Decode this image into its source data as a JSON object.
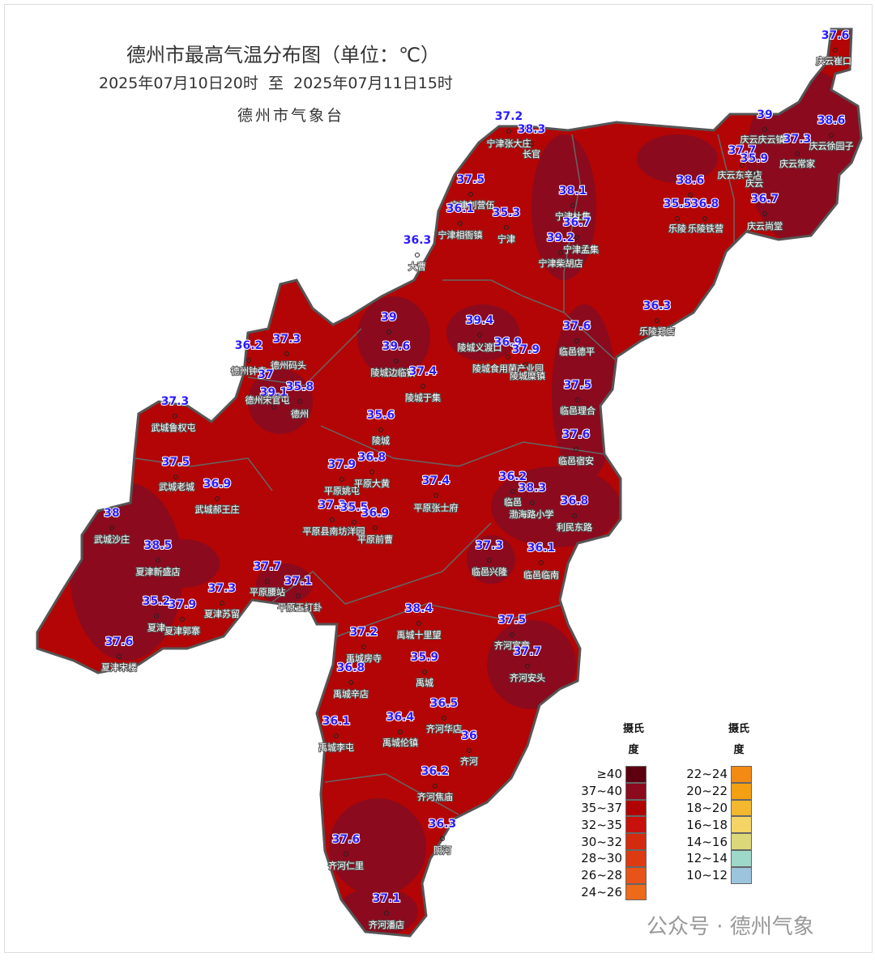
{
  "header": {
    "title": "德州市最高气温分布图（单位：℃）",
    "period": "2025年07月10日20时  至  2025年07月11日15时",
    "issuer": "德州市气象台"
  },
  "stations": [
    {
      "value": 37.6,
      "name": "庆云崔口"
    },
    {
      "value": 37.2,
      "name": "宁津张大庄"
    },
    {
      "value": 38.3,
      "name": "长官"
    },
    {
      "value": 39,
      "name": "庆云庆云镇"
    },
    {
      "value": 38.6,
      "name": "庆云徐园子"
    },
    {
      "value": 37.3,
      "name": "庆云常家"
    },
    {
      "value": 37.7,
      "name": "庆云东辛店"
    },
    {
      "value": 35.9,
      "name": "庆云"
    },
    {
      "value": 37.5,
      "name": "宁津刘营伍"
    },
    {
      "value": 36.1,
      "name": "宁津相衙镇"
    },
    {
      "value": 35.3,
      "name": "宁津"
    },
    {
      "value": 38.1,
      "name": "宁津杜集"
    },
    {
      "value": 36.7,
      "name": "宁津孟集"
    },
    {
      "value": 39.2,
      "name": "宁津柴胡店"
    },
    {
      "value": 38.6
    },
    {
      "value": 35.5,
      "name": "乐陵"
    },
    {
      "value": 36.8,
      "name": "乐陵铁营"
    },
    {
      "value": 36.7,
      "name": "庆云尚堂"
    },
    {
      "value": 36.3,
      "name": "大曹"
    },
    {
      "value": 36.3,
      "name": "乐陵郑店"
    },
    {
      "value": 39
    },
    {
      "value": 39.4,
      "name": "陵城义渡口"
    },
    {
      "value": 39.6,
      "name": "陵城边临镇"
    },
    {
      "value": 36.9,
      "name": "陵城食用菌产业园"
    },
    {
      "value": 37.9,
      "name": "陵城糜镇"
    },
    {
      "value": 37.6,
      "name": "临邑德平"
    },
    {
      "value": 37.4,
      "name": "陵城于集"
    },
    {
      "value": 36.2,
      "name": "德州钟寺"
    },
    {
      "value": 37.3,
      "name": "德州码头"
    },
    {
      "value": 37
    },
    {
      "value": 39.1,
      "name": "德州宋官屯"
    },
    {
      "value": 35.8,
      "name": "德州"
    },
    {
      "value": 37.3,
      "name": "武城鲁权屯"
    },
    {
      "value": 37.5,
      "name": "临邑理合"
    },
    {
      "value": 35.6,
      "name": "陵城"
    },
    {
      "value": 37.6,
      "name": "临邑宿安"
    },
    {
      "value": 37.9,
      "name": "平原姚屯"
    },
    {
      "value": 36.8,
      "name": "平原大黄"
    },
    {
      "value": 37.5,
      "name": "武城老城"
    },
    {
      "value": 36.9,
      "name": "武城郝王庄"
    },
    {
      "value": 37.4,
      "name": "平原张士府"
    },
    {
      "value": 36.2,
      "name": "临邑"
    },
    {
      "value": 38.3,
      "name": "渤海路小学"
    },
    {
      "value": 36.8,
      "name": "利民东路"
    },
    {
      "value": 38,
      "name": "武城沙庄"
    },
    {
      "value": 37.3,
      "name": "平原县南坊洋园"
    },
    {
      "value": 35.5
    },
    {
      "value": 36.9,
      "name": "平原前曹"
    },
    {
      "value": 38.5,
      "name": "夏津新盛店"
    },
    {
      "value": 37.3,
      "name": "临邑兴隆"
    },
    {
      "value": 36.1,
      "name": "临邑临南"
    },
    {
      "value": 37.7,
      "name": "平原腰站"
    },
    {
      "value": 37.1,
      "name": "平原王打卦"
    },
    {
      "value": 37.3,
      "name": "夏津苏留"
    },
    {
      "value": 35.2,
      "name": "夏津"
    },
    {
      "value": 37.9,
      "name": "夏津郭寨"
    },
    {
      "value": 38.4,
      "name": "禹城十里望"
    },
    {
      "value": 37.2,
      "name": "禹城房寺"
    },
    {
      "value": 37.5,
      "name": "齐河宣章"
    },
    {
      "value": 37.7,
      "name": "齐河安头"
    },
    {
      "value": 35.9,
      "name": "禹城"
    },
    {
      "value": 36.8,
      "name": "禹城辛店"
    },
    {
      "value": 37.6,
      "name": "夏津宋楼"
    },
    {
      "value": 36.5,
      "name": "齐河华店"
    },
    {
      "value": 36.1,
      "name": "禹城李屯"
    },
    {
      "value": 36.4,
      "name": "禹城伦镇"
    },
    {
      "value": 36,
      "name": "齐河"
    },
    {
      "value": 36.2,
      "name": "齐河焦庙"
    },
    {
      "value": 36.3,
      "name": "阴河"
    },
    {
      "value": 37.6,
      "name": "齐河仁里"
    },
    {
      "value": 37.1,
      "name": "齐河潘店"
    }
  ],
  "legend": [
    {
      "title": "摄氏度",
      "items": [
        {
          "label": "≥40",
          "color": "#5c0010"
        },
        {
          "label": "37~40",
          "color": "#8b0a1e"
        },
        {
          "label": "35~37",
          "color": "#b00000"
        },
        {
          "label": "32~35",
          "color": "#c8100c"
        },
        {
          "label": "30~32",
          "color": "#d42a0e"
        },
        {
          "label": "28~30",
          "color": "#de3a12"
        },
        {
          "label": "26~28",
          "color": "#e85418"
        },
        {
          "label": "24~26",
          "color": "#ec6a1a"
        }
      ]
    },
    {
      "title": "摄氏度",
      "items": [
        {
          "label": "22~24",
          "color": "#f28a14"
        },
        {
          "label": "20~22",
          "color": "#f4a012"
        },
        {
          "label": "18~20",
          "color": "#f4b82e"
        },
        {
          "label": "16~18",
          "color": "#f4d464"
        },
        {
          "label": "14~16",
          "color": "#dcd87a"
        },
        {
          "label": "12~14",
          "color": "#9ed8c8"
        },
        {
          "label": "10~12",
          "color": "#9cc4dc"
        }
      ]
    }
  ],
  "watermark": "公众号 · 德州气象"
}
